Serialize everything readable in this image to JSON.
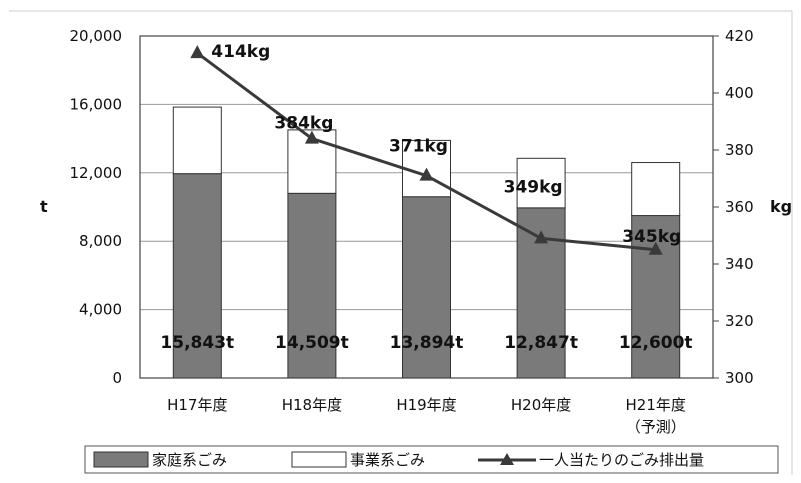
{
  "chart_data": {
    "type": "bar",
    "stacked": true,
    "categories": [
      "H17年度",
      "H18年度",
      "H19年度",
      "H20年度",
      "H21年度"
    ],
    "category_sublabels": [
      "",
      "",
      "",
      "",
      "（予測）"
    ],
    "series": [
      {
        "name": "家庭系ごみ",
        "type": "bar",
        "axis": "left",
        "color": "#7a7a7a",
        "values": [
          11950,
          10800,
          10600,
          9950,
          9500
        ]
      },
      {
        "name": "事業系ごみ",
        "type": "bar",
        "axis": "left",
        "color": "#ffffff",
        "values": [
          3893,
          3709,
          3294,
          2897,
          3100
        ]
      },
      {
        "name": "一人当たりのごみ排出量",
        "type": "line",
        "axis": "right",
        "color": "#3a3a3a",
        "values": [
          414,
          384,
          371,
          349,
          345
        ],
        "labels": [
          "414kg",
          "384kg",
          "371kg",
          "349kg",
          "345kg"
        ]
      }
    ],
    "totals": [
      "15,843t",
      "14,509t",
      "13,894t",
      "12,847t",
      "12,600t"
    ],
    "left_axis": {
      "label": "t",
      "min": 0,
      "max": 20000,
      "ticks": [
        0,
        4000,
        8000,
        12000,
        16000,
        20000
      ],
      "tick_labels": [
        "0",
        "4,000",
        "8,000",
        "12,000",
        "16,000",
        "20,000"
      ]
    },
    "right_axis": {
      "label": "kg",
      "min": 300,
      "max": 420,
      "ticks": [
        300,
        320,
        340,
        360,
        380,
        400,
        420
      ],
      "tick_labels": [
        "300",
        "320",
        "340",
        "360",
        "380",
        "400",
        "420"
      ]
    },
    "grid": true,
    "legend_position": "bottom"
  }
}
